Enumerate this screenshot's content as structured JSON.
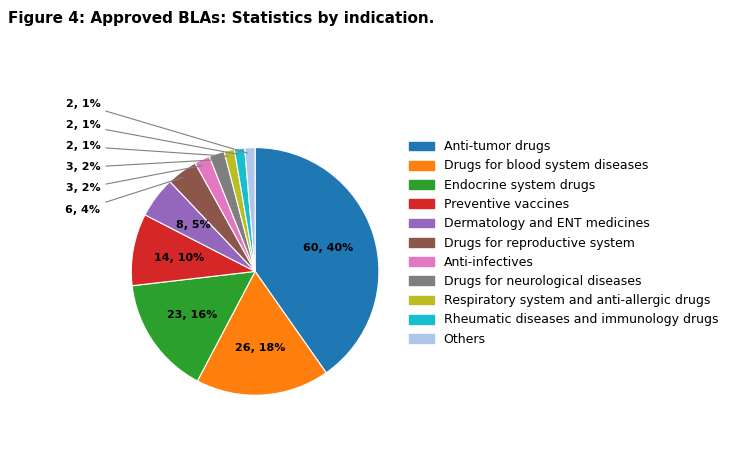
{
  "chart_data": {
    "type": "pie",
    "title": "Figure 4: Approved BLAs: Statistics by indication.",
    "categories": [
      "Anti-tumor drugs",
      "Drugs for blood system diseases",
      "Endocrine system drugs",
      "Preventive vaccines",
      "Dermatology and ENT medicines",
      "Drugs for reproductive system",
      "Anti-infectives",
      "Drugs for neurological diseases",
      "Respiratory system and anti-allergic drugs",
      "Rheumatic diseases and immunology drugs",
      "Others"
    ],
    "values": [
      60,
      26,
      23,
      14,
      8,
      6,
      3,
      3,
      2,
      2,
      2
    ],
    "value_labels": [
      "60, 40%",
      "26, 18%",
      "23, 16%",
      "14, 10%",
      "8, 5%",
      "6, 4%",
      "3, 2%",
      "3, 2%",
      "2, 1%",
      "2, 1%",
      "2, 1%"
    ],
    "colors": [
      "#1f77b4",
      "#ff7f0e",
      "#2ca02c",
      "#d62728",
      "#9467bd",
      "#8c564b",
      "#e377c2",
      "#7f7f7f",
      "#bcbd22",
      "#17becf",
      "#aec7e8"
    ],
    "data_labels": true,
    "legend": "center left"
  }
}
